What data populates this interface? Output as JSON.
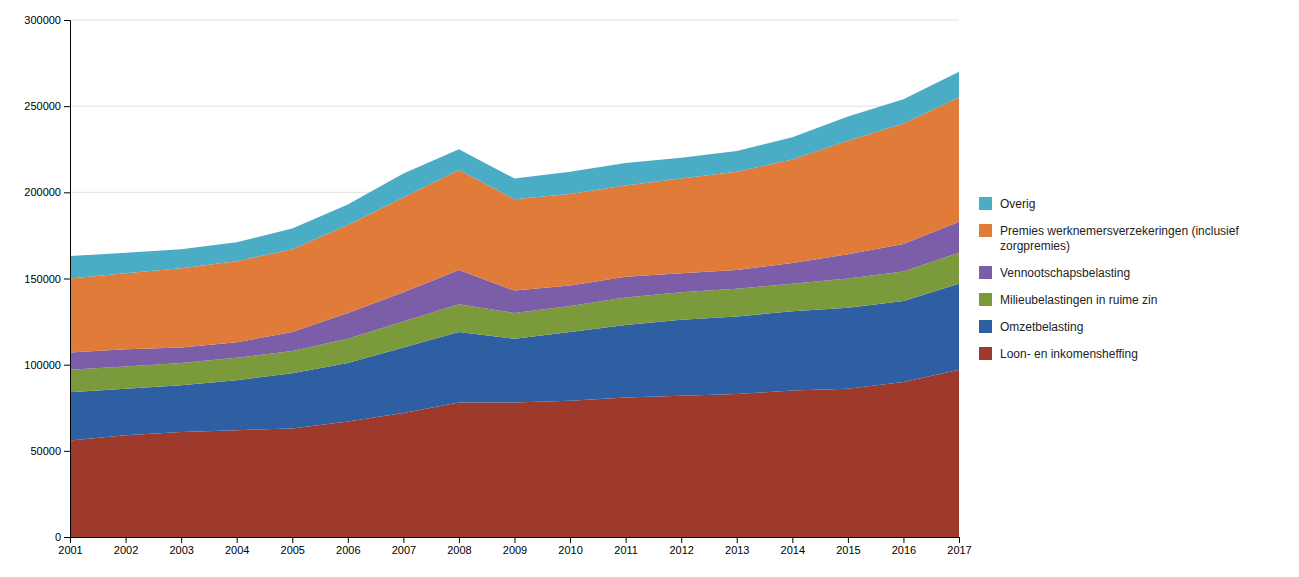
{
  "chart_data": {
    "type": "area",
    "stacked": true,
    "grid": true,
    "legend": "right",
    "x": [
      2001,
      2002,
      2003,
      2004,
      2005,
      2006,
      2007,
      2008,
      2009,
      2010,
      2011,
      2012,
      2013,
      2014,
      2015,
      2016,
      2017
    ],
    "xlim": [
      2001,
      2017
    ],
    "xticks": [
      2001,
      2002,
      2003,
      2004,
      2005,
      2006,
      2007,
      2008,
      2009,
      2010,
      2011,
      2012,
      2013,
      2014,
      2015,
      2016,
      2017
    ],
    "ylim": [
      0,
      300000
    ],
    "yticks": [
      0,
      50000,
      100000,
      150000,
      200000,
      250000,
      300000
    ],
    "series": [
      {
        "name": "Loon- en inkomensheffing",
        "color": "#9e3a2b",
        "values": [
          56000,
          59000,
          61000,
          62000,
          63000,
          67000,
          72000,
          78000,
          78000,
          79000,
          81000,
          82000,
          83000,
          85000,
          86000,
          90000,
          97000
        ]
      },
      {
        "name": "Omzetbelasting",
        "color": "#2e5fa3",
        "values": [
          28000,
          27000,
          27000,
          29000,
          32000,
          34000,
          38000,
          41000,
          37000,
          40000,
          42000,
          44000,
          45000,
          46000,
          47000,
          47000,
          50000
        ]
      },
      {
        "name": "Milieubelastingen in ruime zin",
        "color": "#7a9a3c",
        "values": [
          13000,
          13000,
          13000,
          13000,
          13000,
          14000,
          15000,
          16000,
          15000,
          15000,
          16000,
          16000,
          16000,
          16000,
          17000,
          17000,
          18000
        ]
      },
      {
        "name": "Vennootschapsbelasting",
        "color": "#7b5ea7",
        "values": [
          10000,
          10000,
          9000,
          9000,
          11000,
          15000,
          17000,
          20000,
          13000,
          12000,
          12000,
          11000,
          11000,
          12000,
          14000,
          16000,
          18000
        ]
      },
      {
        "name": "Premies werknemersverzekeringen (inclusief\nzorgpremies)",
        "color": "#e07b39",
        "values": [
          43000,
          44000,
          46000,
          47000,
          48000,
          51000,
          55000,
          58000,
          53000,
          53000,
          53000,
          55000,
          57000,
          60000,
          66000,
          70000,
          72000
        ]
      },
      {
        "name": "Overig",
        "color": "#4bacc6",
        "values": [
          13000,
          12000,
          11000,
          11000,
          12000,
          12000,
          14000,
          12000,
          12000,
          13000,
          13000,
          12000,
          12000,
          13000,
          14000,
          14000,
          15000
        ]
      }
    ]
  }
}
